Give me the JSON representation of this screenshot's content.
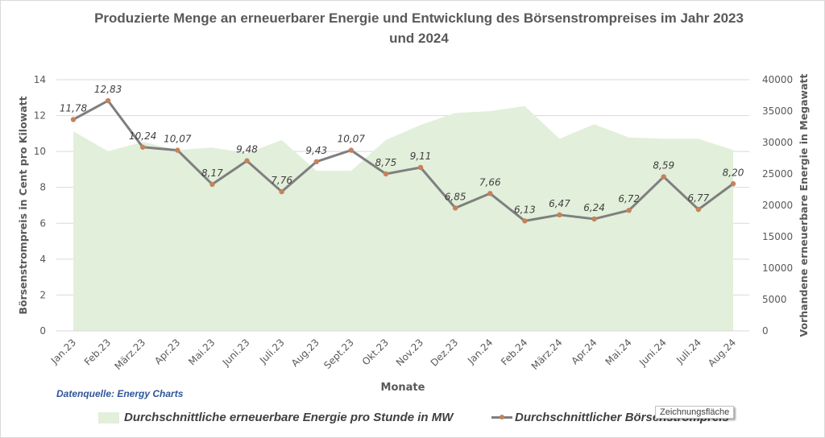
{
  "chart_data": {
    "type": "area+line",
    "title": "Produzierte Menge an erneuerbarer Energie und Entwicklung des Börsenstrompreises im Jahr 2023 und 2024",
    "xlabel": "Monate",
    "ylabel_left": "Börsenstrompreis in Cent pro Kilowatt",
    "ylabel_right": "Vorhandene erneuerbare Energie in Megawatt",
    "categories": [
      "Jan.23",
      "Feb.23",
      "März.23",
      "Apr.23",
      "Mai.23",
      "Juni.23",
      "Juli.23",
      "Aug.23",
      "Sept.23",
      "Okt.23",
      "Nov.23",
      "Dez.23",
      "Jan.24",
      "Feb.24",
      "März.24",
      "Apr.24",
      "Mai.24",
      "Juni.24",
      "Juli.24",
      "Aug.24"
    ],
    "ylim_left": [
      0,
      14
    ],
    "yticks_left": [
      0,
      2,
      4,
      6,
      8,
      10,
      12,
      14
    ],
    "ylim_right": [
      0,
      40000
    ],
    "yticks_right": [
      0,
      5000,
      10000,
      15000,
      20000,
      25000,
      30000,
      35000,
      40000
    ],
    "grid": true,
    "legend_position": "bottom",
    "series": [
      {
        "name": "Durchschnittliche erneuerbare Energie pro Stunde in MW",
        "type": "area",
        "axis": "right",
        "color": "#e2efda",
        "values": [
          31800,
          28600,
          30100,
          28800,
          29200,
          28300,
          30400,
          25500,
          25500,
          30400,
          32800,
          34700,
          35000,
          35800,
          30600,
          32900,
          30800,
          30600,
          30600,
          28800
        ]
      },
      {
        "name": "Durchschnittlicher Börsenstrompreis",
        "type": "line",
        "axis": "left",
        "color": "#7f7f7f",
        "marker_color": "#c5825b",
        "values": [
          11.78,
          12.83,
          10.24,
          10.07,
          8.17,
          9.48,
          7.76,
          9.43,
          10.07,
          8.75,
          9.11,
          6.85,
          7.66,
          6.13,
          6.47,
          6.24,
          6.72,
          8.59,
          6.77,
          8.2
        ],
        "labels": [
          "11,78",
          "12,83",
          "10,24",
          "10,07",
          "8,17",
          "9,48",
          "7,76",
          "9,43",
          "10,07",
          "8,75",
          "9,11",
          "6,85",
          "7,66",
          "6,13",
          "6,47",
          "6,24",
          "6,72",
          "8,59",
          "6,77",
          "8,20"
        ]
      }
    ]
  },
  "source_note": "Datenquelle: Energy Charts",
  "tooltip": "Zeichnungsfläche"
}
